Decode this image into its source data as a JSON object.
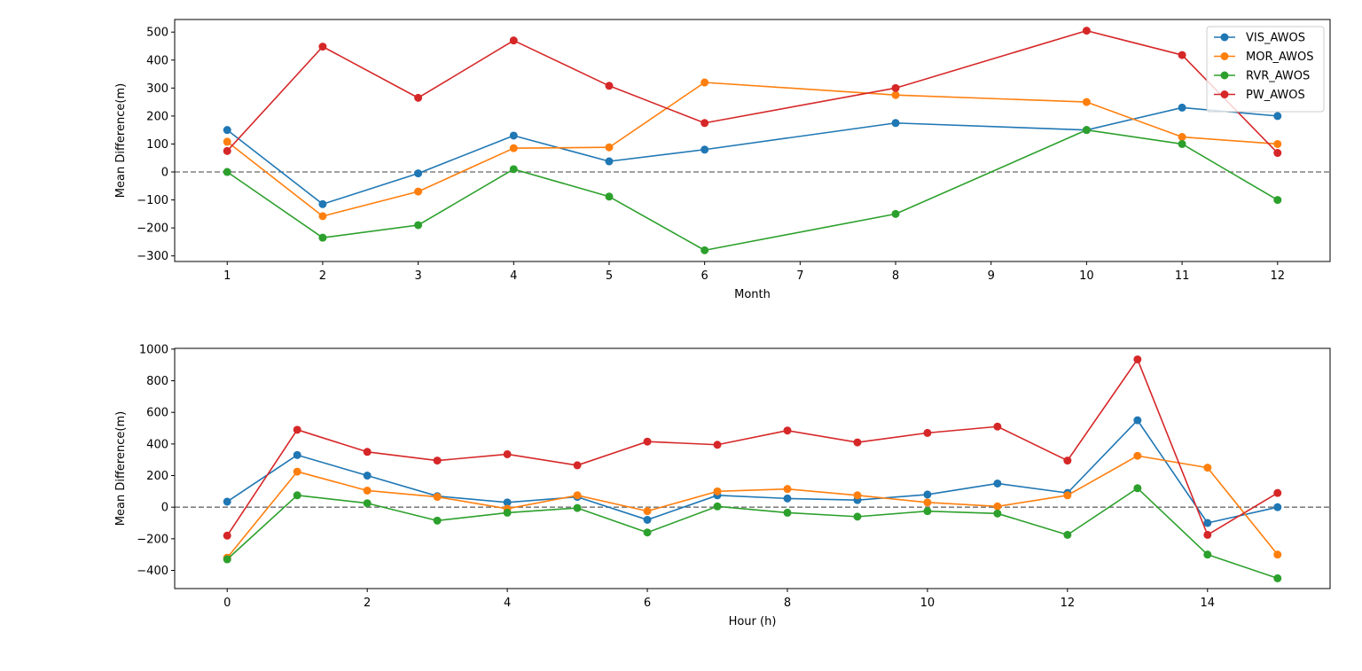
{
  "chart_data": [
    {
      "type": "line",
      "xlabel": "Month",
      "ylabel": "Mean Difference(m)",
      "xlim": [
        0.45,
        12.55
      ],
      "ylim": [
        -320,
        545
      ],
      "xticks": [
        1,
        2,
        3,
        4,
        5,
        6,
        7,
        8,
        9,
        10,
        11,
        12
      ],
      "yticks": [
        -300,
        -200,
        -100,
        0,
        100,
        200,
        300,
        400,
        500
      ],
      "reference_line": {
        "y": 0,
        "style": "dashed",
        "color": "#808080"
      },
      "legend": {
        "position": "top-right"
      },
      "x": [
        1,
        2,
        3,
        4,
        5,
        6,
        8,
        10,
        11,
        12
      ],
      "series": [
        {
          "name": "VIS_AWOS",
          "color": "#1f77b4",
          "values": [
            150,
            -115,
            -5,
            130,
            38,
            80,
            175,
            150,
            230,
            200
          ]
        },
        {
          "name": "MOR_AWOS",
          "color": "#ff7f0e",
          "values": [
            108,
            -158,
            -70,
            85,
            88,
            320,
            275,
            250,
            125,
            100
          ]
        },
        {
          "name": "RVR_AWOS",
          "color": "#2ca02c",
          "values": [
            0,
            -235,
            -190,
            10,
            -88,
            -280,
            -150,
            150,
            100,
            -100
          ]
        },
        {
          "name": "PW_AWOS",
          "color": "#d62728",
          "values": [
            75,
            448,
            265,
            470,
            308,
            175,
            300,
            505,
            418,
            68
          ]
        }
      ]
    },
    {
      "type": "line",
      "xlabel": "Hour (h)",
      "ylabel": "Mean Difference(m)",
      "xlim": [
        -0.75,
        15.75
      ],
      "ylim": [
        -515,
        1005
      ],
      "xticks": [
        0,
        2,
        4,
        6,
        8,
        10,
        12,
        14
      ],
      "yticks": [
        -400,
        -200,
        0,
        200,
        400,
        600,
        800,
        1000
      ],
      "reference_line": {
        "y": 0,
        "style": "dashed",
        "color": "#808080"
      },
      "x": [
        0,
        1,
        2,
        3,
        4,
        5,
        6,
        7,
        8,
        9,
        10,
        11,
        12,
        13,
        14,
        15
      ],
      "series": [
        {
          "name": "VIS_AWOS",
          "color": "#1f77b4",
          "values": [
            35,
            330,
            200,
            70,
            30,
            65,
            -80,
            75,
            55,
            45,
            80,
            150,
            90,
            550,
            -100,
            0
          ]
        },
        {
          "name": "MOR_AWOS",
          "color": "#ff7f0e",
          "values": [
            -320,
            225,
            105,
            65,
            -10,
            75,
            -25,
            100,
            115,
            75,
            30,
            5,
            75,
            325,
            250,
            -300
          ]
        },
        {
          "name": "RVR_AWOS",
          "color": "#2ca02c",
          "values": [
            -330,
            75,
            25,
            -85,
            -35,
            -5,
            -160,
            5,
            -35,
            -60,
            -25,
            -40,
            -175,
            120,
            -300,
            -450
          ]
        },
        {
          "name": "PW_AWOS",
          "color": "#d62728",
          "values": [
            -180,
            490,
            350,
            295,
            335,
            265,
            415,
            395,
            485,
            410,
            470,
            510,
            295,
            935,
            -175,
            90
          ]
        }
      ]
    }
  ]
}
